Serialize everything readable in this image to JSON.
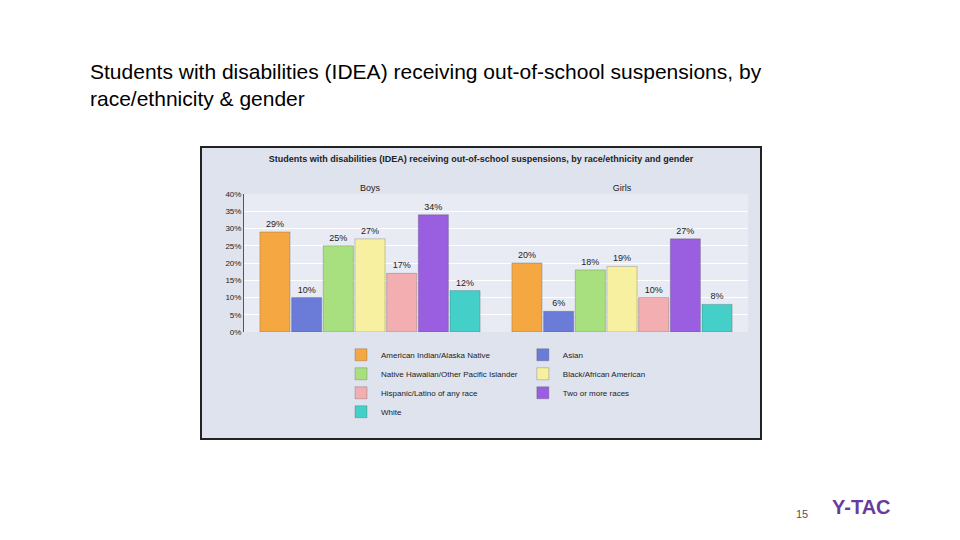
{
  "slide": {
    "title": "Students with disabilities (IDEA) receiving out-of-school suspensions, by race/ethnicity & gender",
    "page_number": "15",
    "logo": "Y-TAC"
  },
  "chart_data": {
    "type": "bar",
    "title": "Students with disabilities (IDEA) receiving out-of-school suspensions, by race/ethnicity and gender",
    "categories": [
      "Boys",
      "Girls"
    ],
    "series": [
      {
        "name": "American Indian/Alaska Native",
        "color": "#f5a742",
        "values": [
          29,
          20
        ],
        "value_labels": [
          "29%",
          "20%"
        ]
      },
      {
        "name": "Asian",
        "color": "#6b7bd8",
        "values": [
          10,
          6
        ],
        "value_labels": [
          "10%",
          "6%"
        ]
      },
      {
        "name": "Native Hawaiian/Other Pacific Islander",
        "color": "#a8e07f",
        "values": [
          25,
          18
        ],
        "value_labels": [
          "25%",
          "18%"
        ]
      },
      {
        "name": "Black/African American",
        "color": "#f7f0a0",
        "values": [
          27,
          19
        ],
        "value_labels": [
          "27%",
          "19%"
        ]
      },
      {
        "name": "Hispanic/Latino of any race",
        "color": "#f2aeb0",
        "values": [
          17,
          10
        ],
        "value_labels": [
          "17%",
          "10%"
        ]
      },
      {
        "name": "Two or more races",
        "color": "#9a5fe0",
        "values": [
          34,
          27
        ],
        "value_labels": [
          "34%",
          "27%"
        ]
      },
      {
        "name": "White",
        "color": "#45cfc9",
        "values": [
          12,
          8
        ],
        "value_labels": [
          "12%",
          "8%"
        ]
      }
    ],
    "ylim": [
      0,
      40
    ],
    "yticks": [
      {
        "value": 0,
        "label": "0%"
      },
      {
        "value": 5,
        "label": "5%"
      },
      {
        "value": 10,
        "label": "10%"
      },
      {
        "value": 15,
        "label": "15%"
      },
      {
        "value": 20,
        "label": "20%"
      },
      {
        "value": 25,
        "label": "25%"
      },
      {
        "value": 30,
        "label": "30%"
      },
      {
        "value": 35,
        "label": "35%"
      },
      {
        "value": 40,
        "label": "40%"
      }
    ],
    "grid": true,
    "data_labels": true,
    "legend": "bottom"
  }
}
